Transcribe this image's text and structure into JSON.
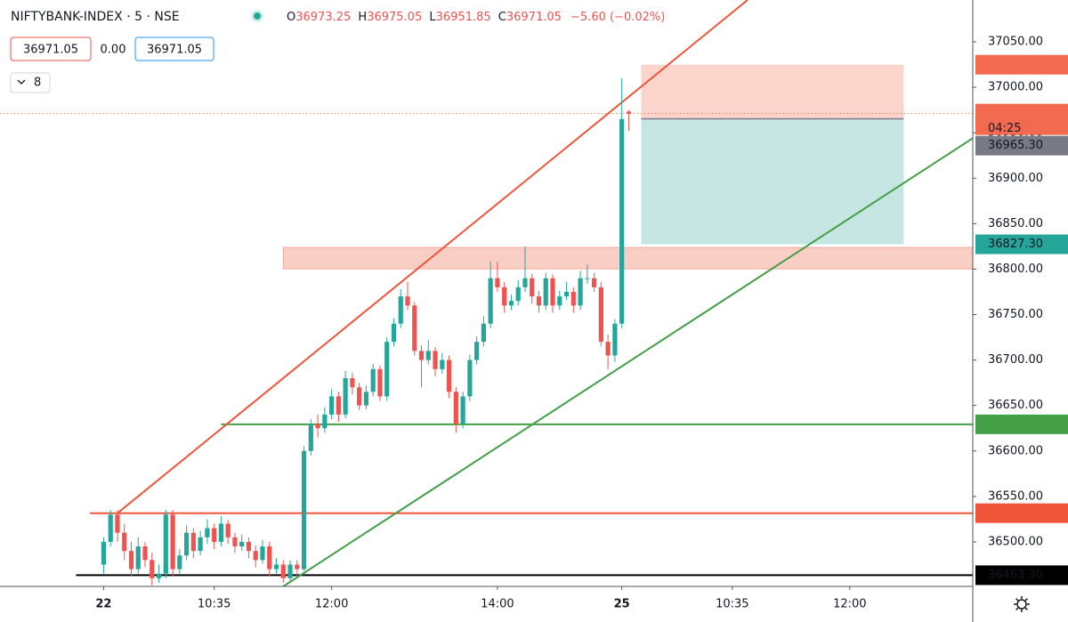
{
  "chart_data": {
    "type": "candlestick",
    "title": "NIFTYBANK-INDEX · 5 · NSE",
    "ohlc_labels": [
      "O",
      "H",
      "L",
      "C"
    ],
    "change": "−5.60 (−0.02%)",
    "quote": {
      "sell": 36971.05,
      "spread": "0.00",
      "buy": 36971.05
    },
    "indicators_count": 8,
    "countdown": "04:25",
    "up_color": "#26a69a",
    "down_color": "#ef5350",
    "open": [
      36475,
      36500,
      36530,
      36510,
      36490,
      36470,
      36495,
      36480,
      36460,
      36465,
      36530,
      36470,
      36485,
      36510,
      36490,
      36505,
      36515,
      36500,
      36520,
      36505,
      36495,
      36500,
      36490,
      36480,
      36495,
      36470,
      36475,
      36460,
      36475,
      36470,
      36600,
      36630,
      36625,
      36640,
      36660,
      36640,
      36680,
      36670,
      36650,
      36665,
      36690,
      36660,
      36720,
      36740,
      36770,
      36760,
      36710,
      36700,
      36710,
      36690,
      36700,
      36665,
      36630,
      36660,
      36700,
      36720,
      36740,
      36790,
      36780,
      36760,
      36765,
      36780,
      36790,
      36770,
      36760,
      36790,
      36760,
      36770,
      36775,
      36760,
      36790,
      36790,
      36780,
      36720,
      36705,
      36740,
      36973.25
    ],
    "high": [
      36505,
      36535,
      36535,
      36520,
      36500,
      36505,
      36500,
      36488,
      36475,
      36535,
      36535,
      36492,
      36518,
      36515,
      36512,
      36525,
      36520,
      36528,
      36524,
      36510,
      36508,
      36505,
      36496,
      36502,
      36500,
      36482,
      36480,
      36480,
      36480,
      36605,
      36635,
      36640,
      36648,
      36668,
      36665,
      36688,
      36686,
      36675,
      36672,
      36696,
      36694,
      36725,
      36746,
      36778,
      36786,
      36764,
      36716,
      36722,
      36714,
      36708,
      36705,
      36670,
      36665,
      36706,
      36726,
      36748,
      36808,
      36808,
      36786,
      36772,
      36788,
      36825,
      36795,
      36776,
      36796,
      36794,
      36776,
      36786,
      36780,
      36798,
      36805,
      36796,
      36786,
      36728,
      36745,
      37010,
      36975.05
    ],
    "low": [
      36465,
      36495,
      36500,
      36480,
      36462,
      36465,
      36472,
      36452,
      36455,
      36460,
      36462,
      36465,
      36480,
      36482,
      36485,
      36498,
      36492,
      36495,
      36498,
      36488,
      36490,
      36482,
      36472,
      36476,
      36462,
      36465,
      36455,
      36456,
      36462,
      36468,
      36595,
      36615,
      36620,
      36635,
      36632,
      36636,
      36662,
      36645,
      36646,
      36660,
      36655,
      36655,
      36715,
      36735,
      36755,
      36705,
      36670,
      36695,
      36682,
      36685,
      36658,
      36620,
      36625,
      36655,
      36695,
      36715,
      36735,
      36775,
      36752,
      36755,
      36760,
      36775,
      36762,
      36752,
      36755,
      36752,
      36755,
      36766,
      36752,
      36755,
      36784,
      36775,
      36715,
      36690,
      36698,
      36735,
      36951.85
    ],
    "close": [
      36500,
      36530,
      36510,
      36490,
      36470,
      36495,
      36480,
      36460,
      36465,
      36530,
      36470,
      36485,
      36510,
      36490,
      36505,
      36515,
      36500,
      36520,
      36505,
      36495,
      36500,
      36490,
      36480,
      36495,
      36470,
      36475,
      36460,
      36475,
      36470,
      36600,
      36630,
      36625,
      36640,
      36660,
      36640,
      36680,
      36670,
      36650,
      36665,
      36690,
      36660,
      36720,
      36740,
      36770,
      36760,
      36710,
      36700,
      36710,
      36690,
      36700,
      36665,
      36630,
      36660,
      36700,
      36720,
      36740,
      36790,
      36780,
      36760,
      36765,
      36780,
      36790,
      36770,
      36760,
      36790,
      36760,
      36770,
      36775,
      36760,
      36790,
      36790,
      36780,
      36720,
      36705,
      36740,
      36965,
      36971.05
    ],
    "xlim": [
      -15,
      125.8
    ],
    "ylim": [
      36451,
      37096
    ],
    "xticks": [
      {
        "value": 0,
        "label": "22",
        "bold": true
      },
      {
        "value": 16,
        "label": "10:35"
      },
      {
        "value": 33,
        "label": "12:00"
      },
      {
        "value": 57,
        "label": "14:00"
      },
      {
        "value": 75,
        "label": "25",
        "bold": true
      },
      {
        "value": 91,
        "label": "10:35"
      },
      {
        "value": 108,
        "label": "12:00"
      }
    ],
    "yticks": [
      {
        "value": 36500,
        "label": "36500.00"
      },
      {
        "value": 36550,
        "label": "36550.00"
      },
      {
        "value": 36600,
        "label": "36600.00"
      },
      {
        "value": 36650,
        "label": "36650.00"
      },
      {
        "value": 36700,
        "label": "36700.00"
      },
      {
        "value": 36750,
        "label": "36750.00"
      },
      {
        "value": 36800,
        "label": "36800.00"
      },
      {
        "value": 36850,
        "label": "36850.00"
      },
      {
        "value": 36900,
        "label": "36900.00"
      },
      {
        "value": 36950,
        "label": "36950.00"
      },
      {
        "value": 37000,
        "label": "37000.00"
      },
      {
        "value": 37050,
        "label": "37050.00"
      }
    ],
    "grid": false,
    "zones": [
      {
        "x": [
          26,
          125.8
        ],
        "y": [
          36800.3,
          36823.8
        ],
        "color": "#f9cfc5"
      }
    ],
    "position": {
      "x": [
        77.8,
        115.8
      ],
      "stop": 37024.85,
      "entry": 36965.3,
      "target": 36827.3,
      "stop_color": "#fbd5cc",
      "target_color": "#c5e6e3"
    },
    "trendlines": [
      {
        "x": [
          2,
          93.2
        ],
        "y": [
          36531.55,
          37096
        ],
        "color": "#f0553a"
      },
      {
        "x": [
          26,
          125.8
        ],
        "y": [
          36451,
          36944
        ],
        "color": "#43a047"
      }
    ],
    "price_labels": [
      {
        "value": 37024.85,
        "color": "#f26b50"
      },
      {
        "value": 36971.05,
        "color": "#f26b50",
        "line_from": -15,
        "dotted": true
      },
      {
        "value": 36965.3,
        "label": "36965.30",
        "color": "#787b86"
      },
      {
        "value": 36827.3,
        "label": "36827.30",
        "color": "#26a69a"
      },
      {
        "value": 36629.25,
        "color": "#43a047",
        "line_from": 17
      },
      {
        "value": 36531.55,
        "color": "#f0553a",
        "line_from": -2
      },
      {
        "value": 36463.3,
        "label": "36463.30",
        "color": "#000000",
        "line_from": -4
      }
    ]
  }
}
